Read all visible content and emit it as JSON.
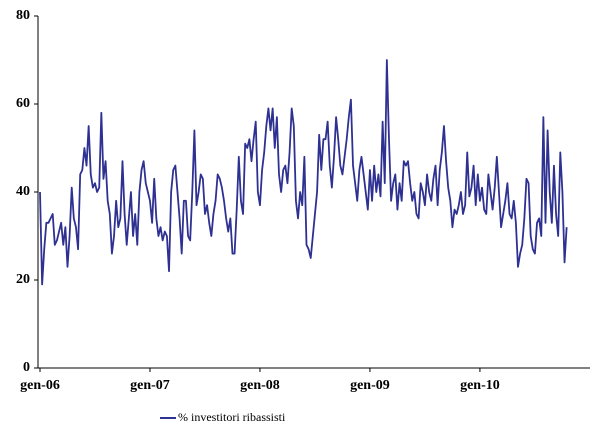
{
  "chart_data": {
    "type": "line",
    "categories": [
      "gen-06",
      null,
      null,
      null,
      null,
      null,
      null,
      null,
      null,
      null,
      null,
      null,
      null,
      null,
      null,
      null,
      null,
      null,
      null,
      null,
      null,
      null,
      null,
      null,
      null,
      null,
      null,
      null,
      null,
      null,
      null,
      null,
      null,
      null,
      null,
      null,
      null,
      null,
      null,
      null,
      null,
      null,
      null,
      null,
      null,
      null,
      null,
      null,
      null,
      null,
      null,
      null,
      "gen-07",
      null,
      null,
      null,
      null,
      null,
      null,
      null,
      null,
      null,
      null,
      null,
      null,
      null,
      null,
      null,
      null,
      null,
      null,
      null,
      null,
      null,
      null,
      null,
      null,
      null,
      null,
      null,
      null,
      null,
      null,
      null,
      null,
      null,
      null,
      null,
      null,
      null,
      null,
      null,
      null,
      null,
      null,
      null,
      null,
      null,
      null,
      null,
      null,
      null,
      null,
      null,
      "gen-08",
      null,
      null,
      null,
      null,
      null,
      null,
      null,
      null,
      null,
      null,
      null,
      null,
      null,
      null,
      null,
      null,
      null,
      null,
      null,
      null,
      null,
      null,
      null,
      null,
      null,
      null,
      null,
      null,
      null,
      null,
      null,
      null,
      null,
      null,
      null,
      null,
      null,
      null,
      null,
      null,
      null,
      null,
      null,
      null,
      null,
      null,
      null,
      null,
      null,
      null,
      null,
      "gen-09",
      null,
      null,
      null,
      null,
      null,
      null,
      null,
      null,
      null,
      null,
      null,
      null,
      null,
      null,
      null,
      null,
      null,
      null,
      null,
      null,
      null,
      null,
      null,
      null,
      null,
      null,
      null,
      null,
      null,
      null,
      null,
      null,
      null,
      null,
      null,
      null,
      null,
      null,
      null,
      null,
      null,
      null,
      null,
      null,
      null,
      null,
      null,
      null,
      null,
      null,
      null,
      "gen-10",
      null,
      null,
      null,
      null,
      null,
      null,
      null,
      null,
      null,
      null,
      null,
      null,
      null,
      null,
      null,
      null,
      null,
      null,
      null,
      null,
      null,
      null,
      null,
      null,
      null,
      null,
      null,
      null,
      null,
      null,
      null,
      null,
      null,
      null,
      null,
      null,
      null,
      null,
      null,
      null,
      null
    ],
    "series": [
      {
        "name": "% investitori ribassisti",
        "color": "#2e3192",
        "values": [
          40,
          19,
          27,
          33,
          33,
          34,
          35,
          28,
          29,
          31,
          33,
          28,
          32,
          23,
          30,
          41,
          34,
          32,
          27,
          44,
          45,
          50,
          46,
          55,
          44,
          41,
          42,
          40,
          41,
          58,
          43,
          47,
          38,
          35,
          26,
          30,
          38,
          32,
          34,
          47,
          35,
          28,
          34,
          40,
          30,
          35,
          28,
          40,
          45,
          47,
          42,
          40,
          38,
          33,
          43,
          34,
          30,
          32,
          29,
          31,
          30,
          22,
          40,
          45,
          46,
          40,
          34,
          26,
          38,
          38,
          30,
          29,
          40,
          54,
          37,
          40,
          44,
          43,
          35,
          37,
          33,
          30,
          35,
          38,
          44,
          43,
          41,
          38,
          34,
          31,
          34,
          26,
          26,
          36,
          48,
          38,
          35,
          51,
          50,
          52,
          47,
          52,
          56,
          40,
          37,
          45,
          49,
          55,
          59,
          54,
          59,
          50,
          57,
          44,
          40,
          45,
          46,
          42,
          49,
          59,
          55,
          38,
          34,
          40,
          37,
          48,
          28,
          27,
          25,
          30,
          35,
          40,
          53,
          45,
          52,
          52,
          56,
          46,
          41,
          48,
          57,
          52,
          46,
          44,
          48,
          52,
          57,
          61,
          46,
          42,
          38,
          45,
          48,
          44,
          40,
          36,
          45,
          38,
          46,
          40,
          44,
          39,
          56,
          42,
          70,
          52,
          38,
          42,
          44,
          36,
          42,
          38,
          47,
          46,
          47,
          42,
          38,
          40,
          35,
          34,
          42,
          40,
          37,
          44,
          40,
          38,
          43,
          46,
          37,
          45,
          49,
          55,
          47,
          41,
          38,
          32,
          36,
          35,
          37,
          40,
          35,
          37,
          49,
          39,
          41,
          46,
          37,
          44,
          38,
          41,
          36,
          35,
          44,
          40,
          36,
          41,
          48,
          40,
          32,
          35,
          38,
          42,
          35,
          34,
          38,
          33,
          23,
          26,
          28,
          34,
          43,
          42,
          30,
          27,
          26,
          33,
          34,
          30,
          57,
          33,
          54,
          40,
          33,
          46,
          35,
          30,
          49,
          40,
          24,
          32
        ]
      }
    ],
    "ylim": [
      0,
      80
    ],
    "yticks": [
      0,
      20,
      40,
      60,
      80
    ],
    "legend": "bottom"
  }
}
